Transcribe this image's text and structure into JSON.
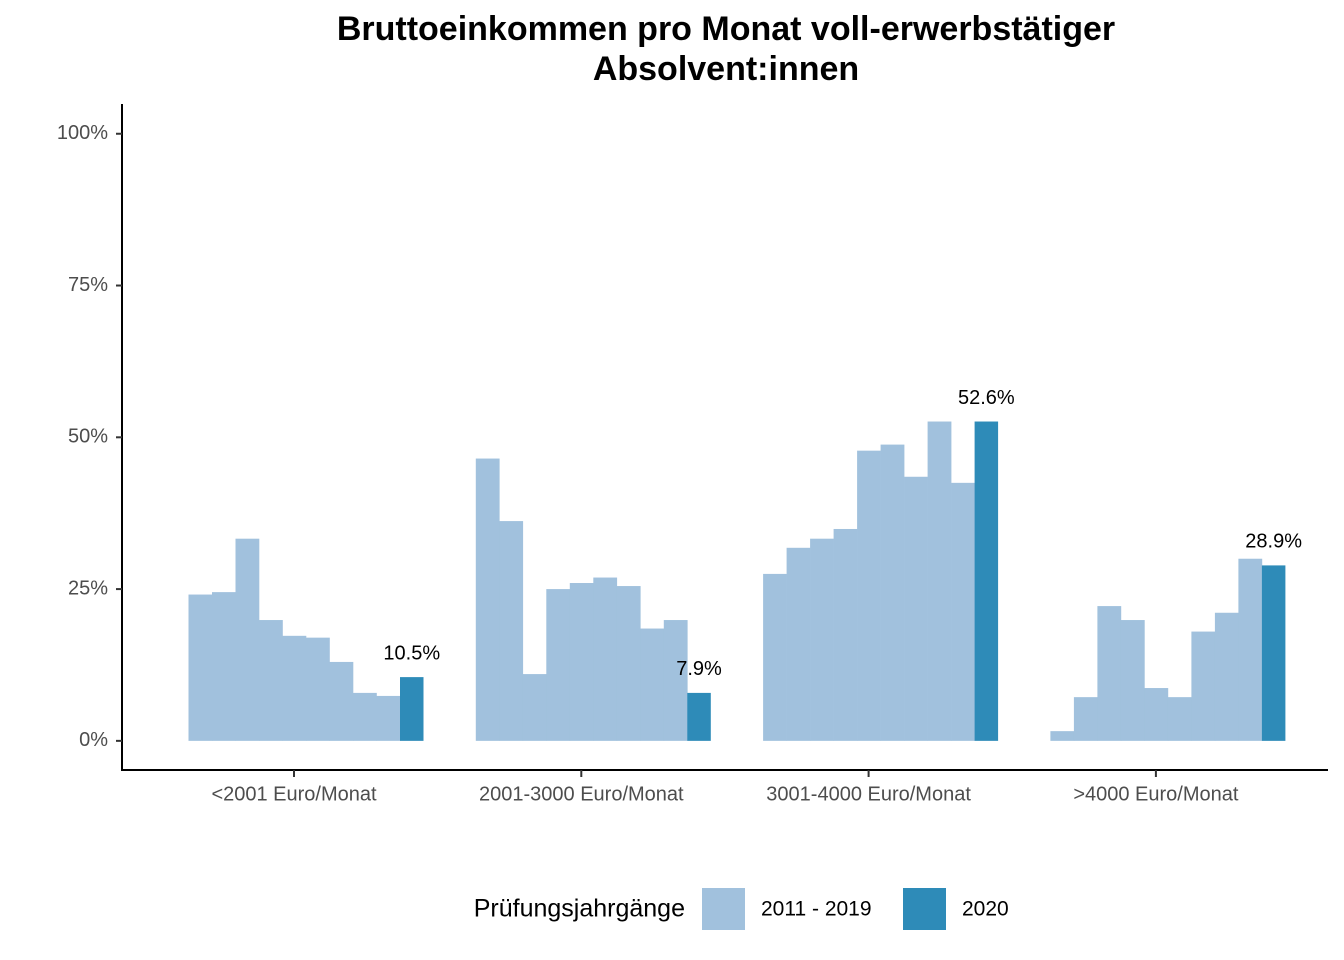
{
  "chart_data": {
    "type": "bar",
    "title": [
      "Bruttoeinkommen pro Monat voll-erwerbstätiger",
      "Absolvent:innen"
    ],
    "categories": [
      "<2001 Euro/Monat",
      "2001-3000 Euro/Monat",
      "3001-4000 Euro/Monat",
      ">4000 Euro/Monat"
    ],
    "legend_title": "Prüfungsjahrgänge",
    "series": [
      {
        "name": "2011 - 2019",
        "color": "#a1c1dd",
        "values": [
          [
            24.1,
            24.5,
            33.3,
            19.9,
            17.3,
            17.0,
            13.0,
            7.9,
            7.4
          ],
          [
            46.5,
            36.2,
            11.0,
            25.0,
            26.0,
            26.9,
            25.5,
            18.5,
            19.9
          ],
          [
            27.5,
            31.8,
            33.3,
            34.9,
            47.8,
            48.8,
            43.5,
            52.6,
            42.5
          ],
          [
            1.6,
            7.2,
            22.2,
            19.9,
            8.7,
            7.2,
            18.0,
            21.1,
            30.0
          ]
        ]
      },
      {
        "name": "2020",
        "color": "#2e8bb8",
        "values": [
          10.5,
          7.9,
          52.6,
          28.9
        ],
        "value_labels": [
          "10.5%",
          "7.9%",
          "52.6%",
          "28.9%"
        ]
      }
    ],
    "ylim": [
      -4.8,
      104.9
    ],
    "yticks": [
      {
        "value": 0,
        "label": "0%"
      },
      {
        "value": 25,
        "label": "25%"
      },
      {
        "value": 50,
        "label": "50%"
      },
      {
        "value": 75,
        "label": "75%"
      },
      {
        "value": 100,
        "label": "100%"
      }
    ],
    "grid": false
  }
}
